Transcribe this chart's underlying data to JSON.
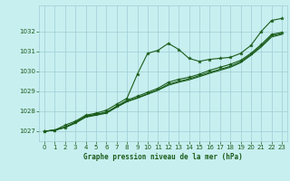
{
  "title": "Graphe pression niveau de la mer (hPa)",
  "background_color": "#c8eff0",
  "grid_color": "#9dcdd4",
  "line_color": "#1a5c1a",
  "marker_color": "#1a5c1a",
  "tick_color": "#1a5c1a",
  "xlim": [
    -0.5,
    23.5
  ],
  "ylim": [
    1026.5,
    1033.3
  ],
  "xtick_labels": [
    "0",
    "1",
    "2",
    "3",
    "4",
    "5",
    "6",
    "7",
    "8",
    "9",
    "10",
    "11",
    "12",
    "13",
    "14",
    "15",
    "16",
    "17",
    "18",
    "19",
    "20",
    "21",
    "22",
    "23"
  ],
  "yticks": [
    1027,
    1028,
    1029,
    1030,
    1031,
    1032
  ],
  "series1_x": [
    0,
    1,
    2,
    3,
    4,
    5,
    6,
    7,
    8,
    9,
    10,
    11,
    12,
    13,
    14,
    15,
    16,
    17,
    18,
    19,
    20,
    21,
    22,
    23
  ],
  "series1_y": [
    1027.0,
    1027.05,
    1027.3,
    1027.5,
    1027.8,
    1027.9,
    1028.05,
    1028.35,
    1028.65,
    1029.85,
    1030.9,
    1031.05,
    1031.4,
    1031.1,
    1030.65,
    1030.5,
    1030.6,
    1030.65,
    1030.7,
    1030.9,
    1031.3,
    1032.0,
    1032.55,
    1032.65
  ],
  "series2_x": [
    0,
    1,
    2,
    3,
    4,
    5,
    6,
    7,
    8,
    9,
    10,
    11,
    12,
    13,
    14,
    15,
    16,
    17,
    18,
    19,
    20,
    21,
    22,
    23
  ],
  "series2_y": [
    1027.0,
    1027.05,
    1027.2,
    1027.45,
    1027.75,
    1027.85,
    1027.95,
    1028.25,
    1028.55,
    1028.75,
    1028.95,
    1029.15,
    1029.45,
    1029.6,
    1029.7,
    1029.85,
    1030.05,
    1030.2,
    1030.35,
    1030.55,
    1030.9,
    1031.35,
    1031.85,
    1031.95
  ],
  "series3_x": [
    0,
    1,
    2,
    3,
    4,
    5,
    6,
    7,
    8,
    9,
    10,
    11,
    12,
    13,
    14,
    15,
    16,
    17,
    18,
    19,
    20,
    21,
    22,
    23
  ],
  "series3_y": [
    1027.0,
    1027.05,
    1027.2,
    1027.42,
    1027.73,
    1027.83,
    1027.93,
    1028.22,
    1028.5,
    1028.68,
    1028.88,
    1029.08,
    1029.35,
    1029.5,
    1029.62,
    1029.78,
    1029.95,
    1030.1,
    1030.25,
    1030.48,
    1030.85,
    1031.28,
    1031.78,
    1031.9
  ],
  "series4_x": [
    0,
    1,
    2,
    3,
    4,
    5,
    6,
    7,
    8,
    9,
    10,
    11,
    12,
    13,
    14,
    15,
    16,
    17,
    18,
    19,
    20,
    21,
    22,
    23
  ],
  "series4_y": [
    1027.0,
    1027.05,
    1027.18,
    1027.4,
    1027.7,
    1027.8,
    1027.9,
    1028.2,
    1028.48,
    1028.65,
    1028.85,
    1029.05,
    1029.3,
    1029.45,
    1029.57,
    1029.73,
    1029.9,
    1030.05,
    1030.2,
    1030.43,
    1030.8,
    1031.22,
    1031.72,
    1031.85
  ]
}
